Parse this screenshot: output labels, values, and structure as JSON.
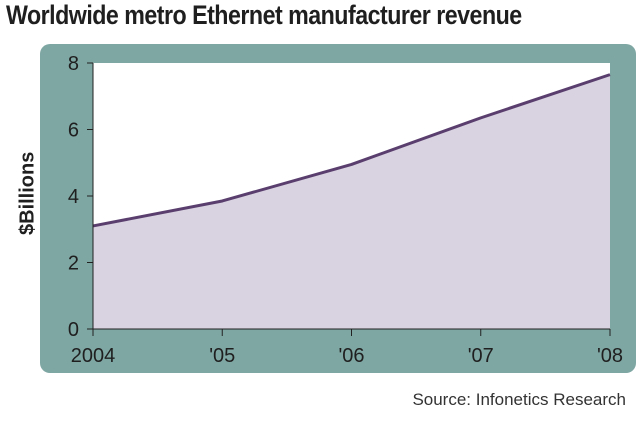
{
  "chart_data": {
    "type": "area",
    "title": "Worldwide metro Ethernet manufacturer revenue",
    "xlabel": "",
    "ylabel": "$Billions",
    "categories": [
      "2004",
      "'05",
      "'06",
      "'07",
      "'08"
    ],
    "series": [
      {
        "values": [
          3.1,
          3.85,
          4.95,
          6.35,
          7.65
        ]
      }
    ],
    "ylim": [
      0,
      8
    ],
    "yticks": [
      "0",
      "2",
      "4",
      "6",
      "8"
    ],
    "grid": false,
    "legend": "none",
    "source": "Source: Infonetics Research"
  },
  "colors": {
    "panel": "#7ea6a2",
    "plot_background": "#ffffff",
    "area_fill": "#d9d3e1",
    "line": "#5a3f6e",
    "text": "#1f1f1f"
  }
}
